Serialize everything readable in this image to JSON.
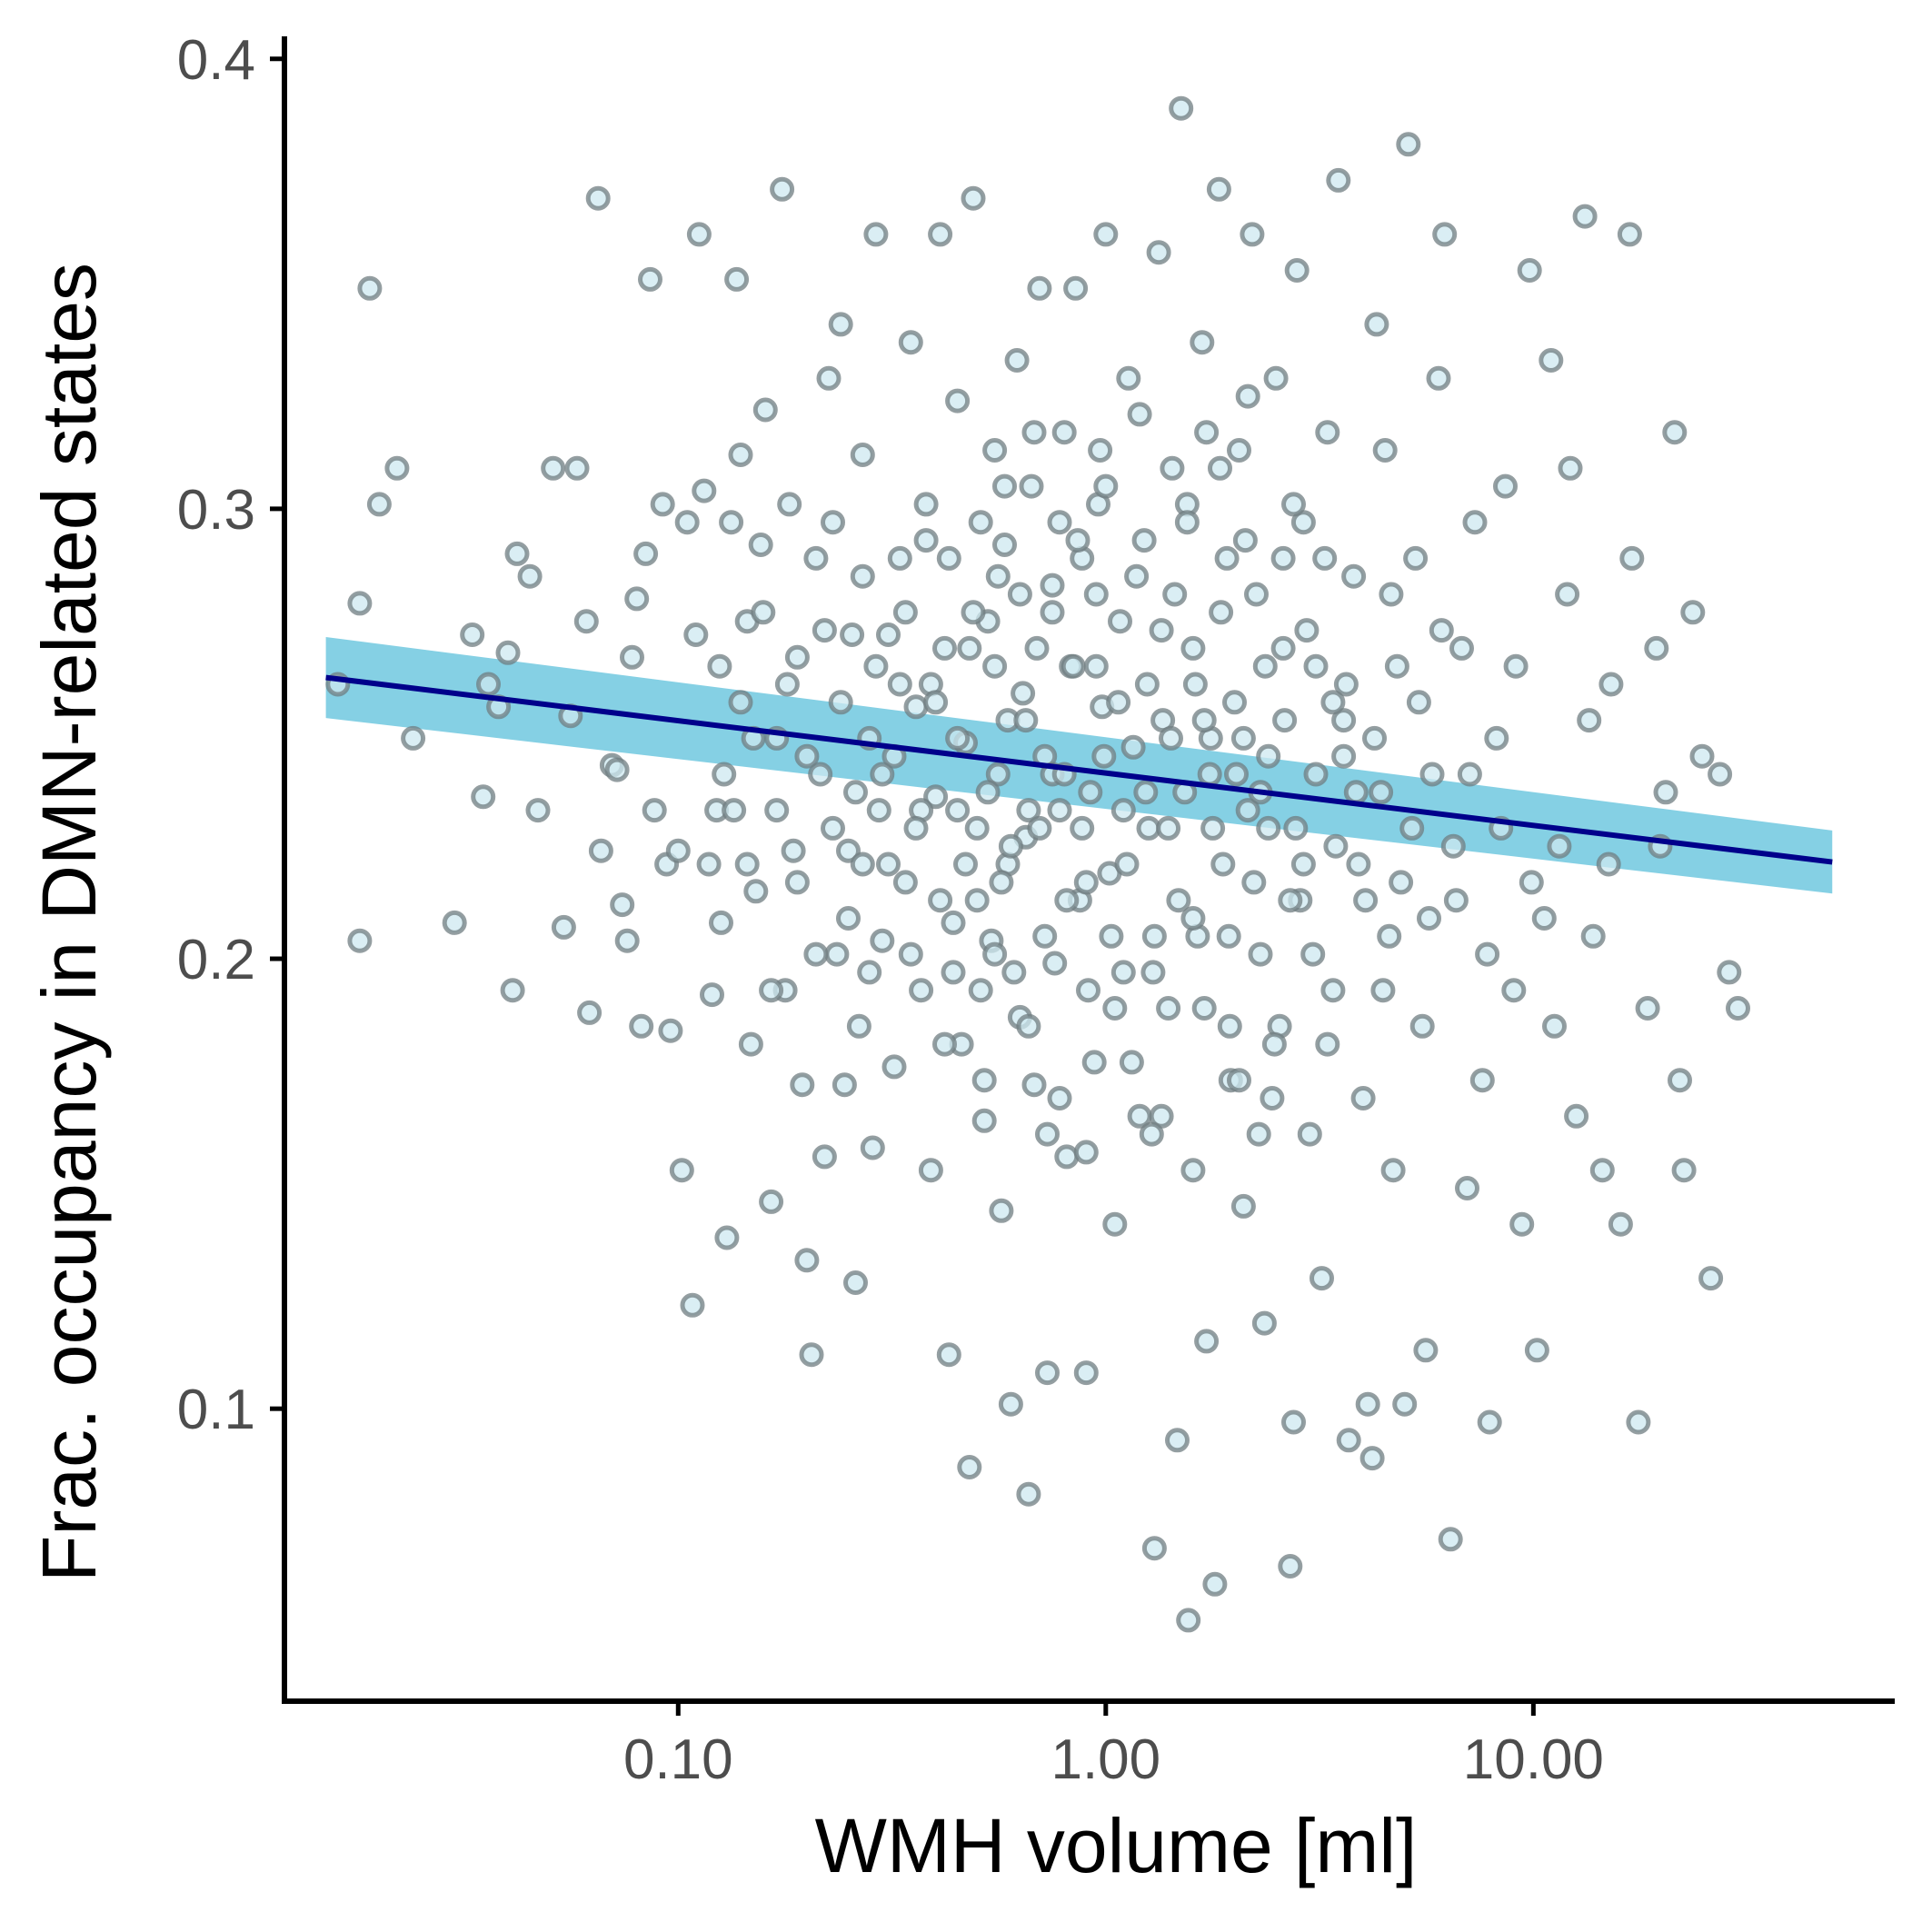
{
  "chart_data": {
    "type": "scatter",
    "xlabel": "WMH volume [ml]",
    "ylabel": "Frac. occupancy in DMN-related states",
    "x_scale": "log10",
    "x_ticks": [
      0.1,
      1,
      10
    ],
    "x_tick_labels": [
      "0.10",
      "1.00",
      "10.00"
    ],
    "y_ticks": [
      0.1,
      0.2,
      0.3,
      0.4
    ],
    "y_tick_labels": [
      "0.1",
      "0.2",
      "0.3",
      "0.4"
    ],
    "xlim": [
      0.012,
      70
    ],
    "ylim": [
      0.035,
      0.405
    ],
    "grid": false,
    "legend": "none",
    "colors": {
      "point_fill": "#cde8f0",
      "point_stroke": "#707d82",
      "fit_line": "#00008b",
      "confidence_band": "#7ecde3",
      "axis": "#000000"
    },
    "fit": {
      "x": [
        0.015,
        50
      ],
      "y": [
        0.2625,
        0.2215
      ],
      "ci_lower": [
        0.2535,
        0.2145
      ],
      "ci_upper": [
        0.2715,
        0.2285
      ]
    },
    "points": [
      [
        0.016,
        0.261
      ],
      [
        0.018,
        0.204
      ],
      [
        0.019,
        0.349
      ],
      [
        0.02,
        0.301
      ],
      [
        0.022,
        0.309
      ],
      [
        0.024,
        0.249
      ],
      [
        0.018,
        0.279
      ],
      [
        0.03,
        0.208
      ],
      [
        0.033,
        0.272
      ],
      [
        0.035,
        0.236
      ],
      [
        0.036,
        0.261
      ],
      [
        0.038,
        0.256
      ],
      [
        0.04,
        0.268
      ],
      [
        0.041,
        0.193
      ],
      [
        0.042,
        0.29
      ],
      [
        0.045,
        0.285
      ],
      [
        0.047,
        0.233
      ],
      [
        0.051,
        0.309
      ],
      [
        0.054,
        0.207
      ],
      [
        0.056,
        0.254
      ],
      [
        0.058,
        0.309
      ],
      [
        0.061,
        0.275
      ],
      [
        0.062,
        0.188
      ],
      [
        0.065,
        0.369
      ],
      [
        0.066,
        0.224
      ],
      [
        0.07,
        0.243
      ],
      [
        0.072,
        0.242
      ],
      [
        0.074,
        0.212
      ],
      [
        0.076,
        0.204
      ],
      [
        0.078,
        0.267
      ],
      [
        0.08,
        0.28
      ],
      [
        0.082,
        0.185
      ],
      [
        0.084,
        0.29
      ],
      [
        0.086,
        0.351
      ],
      [
        0.088,
        0.233
      ],
      [
        0.092,
        0.301
      ],
      [
        0.094,
        0.221
      ],
      [
        0.096,
        0.184
      ],
      [
        0.1,
        0.224
      ],
      [
        0.102,
        0.153
      ],
      [
        0.105,
        0.297
      ],
      [
        0.108,
        0.123
      ],
      [
        0.11,
        0.272
      ],
      [
        0.112,
        0.361
      ],
      [
        0.115,
        0.304
      ],
      [
        0.118,
        0.221
      ],
      [
        0.12,
        0.192
      ],
      [
        0.123,
        0.233
      ],
      [
        0.126,
        0.208
      ],
      [
        0.13,
        0.138
      ],
      [
        0.133,
        0.297
      ],
      [
        0.137,
        0.351
      ],
      [
        0.14,
        0.312
      ],
      [
        0.145,
        0.275
      ],
      [
        0.148,
        0.181
      ],
      [
        0.152,
        0.215
      ],
      [
        0.156,
        0.292
      ],
      [
        0.16,
        0.322
      ],
      [
        0.165,
        0.146
      ],
      [
        0.17,
        0.249
      ],
      [
        0.175,
        0.371
      ],
      [
        0.178,
        0.193
      ],
      [
        0.182,
        0.301
      ],
      [
        0.186,
        0.224
      ],
      [
        0.19,
        0.267
      ],
      [
        0.195,
        0.172
      ],
      [
        0.2,
        0.133
      ],
      [
        0.205,
        0.112
      ],
      [
        0.21,
        0.289
      ],
      [
        0.215,
        0.241
      ],
      [
        0.22,
        0.156
      ],
      [
        0.225,
        0.329
      ],
      [
        0.23,
        0.297
      ],
      [
        0.235,
        0.201
      ],
      [
        0.24,
        0.341
      ],
      [
        0.245,
        0.172
      ],
      [
        0.25,
        0.224
      ],
      [
        0.255,
        0.272
      ],
      [
        0.26,
        0.128
      ],
      [
        0.265,
        0.185
      ],
      [
        0.27,
        0.312
      ],
      [
        0.28,
        0.249
      ],
      [
        0.285,
        0.158
      ],
      [
        0.29,
        0.361
      ],
      [
        0.295,
        0.233
      ],
      [
        0.3,
        0.204
      ],
      [
        0.31,
        0.272
      ],
      [
        0.32,
        0.176
      ],
      [
        0.33,
        0.289
      ],
      [
        0.34,
        0.217
      ],
      [
        0.35,
        0.337
      ],
      [
        0.36,
        0.256
      ],
      [
        0.37,
        0.193
      ],
      [
        0.38,
        0.301
      ],
      [
        0.39,
        0.153
      ],
      [
        0.4,
        0.236
      ],
      [
        0.41,
        0.361
      ],
      [
        0.42,
        0.269
      ],
      [
        0.43,
        0.112
      ],
      [
        0.44,
        0.208
      ],
      [
        0.45,
        0.324
      ],
      [
        0.46,
        0.181
      ],
      [
        0.47,
        0.248
      ],
      [
        0.48,
        0.087
      ],
      [
        0.49,
        0.369
      ],
      [
        0.5,
        0.229
      ],
      [
        0.51,
        0.297
      ],
      [
        0.52,
        0.164
      ],
      [
        0.53,
        0.275
      ],
      [
        0.54,
        0.204
      ],
      [
        0.55,
        0.313
      ],
      [
        0.56,
        0.241
      ],
      [
        0.57,
        0.144
      ],
      [
        0.58,
        0.292
      ],
      [
        0.59,
        0.221
      ],
      [
        0.6,
        0.101
      ],
      [
        0.62,
        0.333
      ],
      [
        0.63,
        0.187
      ],
      [
        0.64,
        0.259
      ],
      [
        0.65,
        0.227
      ],
      [
        0.66,
        0.081
      ],
      [
        0.67,
        0.305
      ],
      [
        0.68,
        0.172
      ],
      [
        0.7,
        0.349
      ],
      [
        0.72,
        0.245
      ],
      [
        0.73,
        0.108
      ],
      [
        0.75,
        0.283
      ],
      [
        0.76,
        0.199
      ],
      [
        0.78,
        0.233
      ],
      [
        0.8,
        0.317
      ],
      [
        0.81,
        0.156
      ],
      [
        0.83,
        0.265
      ],
      [
        0.85,
        0.349
      ],
      [
        0.87,
        0.213
      ],
      [
        0.88,
        0.289
      ],
      [
        0.9,
        0.108
      ],
      [
        0.92,
        0.237
      ],
      [
        0.94,
        0.177
      ],
      [
        0.96,
        0.301
      ],
      [
        0.98,
        0.256
      ],
      [
        1.0,
        0.361
      ],
      [
        1.02,
        0.219
      ],
      [
        1.05,
        0.141
      ],
      [
        1.08,
        0.275
      ],
      [
        1.1,
        0.197
      ],
      [
        1.13,
        0.329
      ],
      [
        1.16,
        0.247
      ],
      [
        1.2,
        0.165
      ],
      [
        1.23,
        0.293
      ],
      [
        1.26,
        0.229
      ],
      [
        1.3,
        0.069
      ],
      [
        1.33,
        0.357
      ],
      [
        1.36,
        0.253
      ],
      [
        1.4,
        0.189
      ],
      [
        1.43,
        0.309
      ],
      [
        1.47,
        0.093
      ],
      [
        1.5,
        0.389
      ],
      [
        1.53,
        0.237
      ],
      [
        1.56,
        0.053
      ],
      [
        1.6,
        0.269
      ],
      [
        1.64,
        0.205
      ],
      [
        1.68,
        0.337
      ],
      [
        1.72,
        0.115
      ],
      [
        1.76,
        0.249
      ],
      [
        1.8,
        0.061
      ],
      [
        1.84,
        0.371
      ],
      [
        1.88,
        0.221
      ],
      [
        1.92,
        0.289
      ],
      [
        1.96,
        0.173
      ],
      [
        2.0,
        0.257
      ],
      [
        2.05,
        0.313
      ],
      [
        2.1,
        0.145
      ],
      [
        2.15,
        0.233
      ],
      [
        2.2,
        0.361
      ],
      [
        2.25,
        0.281
      ],
      [
        2.3,
        0.201
      ],
      [
        2.35,
        0.119
      ],
      [
        2.4,
        0.245
      ],
      [
        2.5,
        0.329
      ],
      [
        2.55,
        0.185
      ],
      [
        2.6,
        0.269
      ],
      [
        2.7,
        0.065
      ],
      [
        2.75,
        0.097
      ],
      [
        2.8,
        0.353
      ],
      [
        2.85,
        0.213
      ],
      [
        2.9,
        0.297
      ],
      [
        3.0,
        0.161
      ],
      [
        3.1,
        0.241
      ],
      [
        3.2,
        0.129
      ],
      [
        3.3,
        0.317
      ],
      [
        3.4,
        0.193
      ],
      [
        3.5,
        0.373
      ],
      [
        3.6,
        0.253
      ],
      [
        3.7,
        0.093
      ],
      [
        3.8,
        0.285
      ],
      [
        3.9,
        0.221
      ],
      [
        4.0,
        0.169
      ],
      [
        4.1,
        0.101
      ],
      [
        4.2,
        0.089
      ],
      [
        4.3,
        0.341
      ],
      [
        4.4,
        0.237
      ],
      [
        4.5,
        0.313
      ],
      [
        4.6,
        0.205
      ],
      [
        4.7,
        0.153
      ],
      [
        4.8,
        0.265
      ],
      [
        5.0,
        0.101
      ],
      [
        5.1,
        0.381
      ],
      [
        5.3,
        0.289
      ],
      [
        5.5,
        0.185
      ],
      [
        5.6,
        0.113
      ],
      [
        5.8,
        0.241
      ],
      [
        6.0,
        0.329
      ],
      [
        6.2,
        0.361
      ],
      [
        6.4,
        0.071
      ],
      [
        6.6,
        0.213
      ],
      [
        6.8,
        0.269
      ],
      [
        7.0,
        0.149
      ],
      [
        7.3,
        0.297
      ],
      [
        7.6,
        0.173
      ],
      [
        7.9,
        0.097
      ],
      [
        8.2,
        0.249
      ],
      [
        8.6,
        0.305
      ],
      [
        9.0,
        0.193
      ],
      [
        9.4,
        0.141
      ],
      [
        9.8,
        0.353
      ],
      [
        10.2,
        0.113
      ],
      [
        10.6,
        0.209
      ],
      [
        11.0,
        0.333
      ],
      [
        11.5,
        0.225
      ],
      [
        12.0,
        0.281
      ],
      [
        12.6,
        0.165
      ],
      [
        13.2,
        0.365
      ],
      [
        13.8,
        0.205
      ],
      [
        14.5,
        0.153
      ],
      [
        15.2,
        0.261
      ],
      [
        16.0,
        0.141
      ],
      [
        16.8,
        0.361
      ],
      [
        17.6,
        0.097
      ],
      [
        18.5,
        0.189
      ],
      [
        19.4,
        0.269
      ],
      [
        20.4,
        0.237
      ],
      [
        21.4,
        0.317
      ],
      [
        22.5,
        0.153
      ],
      [
        23.6,
        0.277
      ],
      [
        24.8,
        0.245
      ],
      [
        26.0,
        0.129
      ],
      [
        27.3,
        0.241
      ],
      [
        28.7,
        0.197
      ],
      [
        30.1,
        0.189
      ],
      [
        22.0,
        0.173
      ],
      [
        19.8,
        0.225
      ],
      [
        17.0,
        0.289
      ],
      [
        15.0,
        0.221
      ],
      [
        13.5,
        0.253
      ],
      [
        12.2,
        0.309
      ],
      [
        11.2,
        0.185
      ],
      [
        9.9,
        0.217
      ],
      [
        9.1,
        0.265
      ],
      [
        8.4,
        0.229
      ],
      [
        7.8,
        0.201
      ],
      [
        7.1,
        0.241
      ],
      [
        6.5,
        0.225
      ],
      [
        6.1,
        0.273
      ],
      [
        5.7,
        0.209
      ],
      [
        5.4,
        0.257
      ],
      [
        5.2,
        0.229
      ],
      [
        4.9,
        0.217
      ],
      [
        4.65,
        0.281
      ],
      [
        4.45,
        0.193
      ],
      [
        4.25,
        0.249
      ],
      [
        4.05,
        0.213
      ],
      [
        3.85,
        0.237
      ],
      [
        3.65,
        0.261
      ],
      [
        3.45,
        0.225
      ],
      [
        3.25,
        0.289
      ],
      [
        3.05,
        0.201
      ],
      [
        2.95,
        0.273
      ],
      [
        2.78,
        0.229
      ],
      [
        2.62,
        0.253
      ],
      [
        2.48,
        0.181
      ],
      [
        2.36,
        0.265
      ],
      [
        2.22,
        0.217
      ],
      [
        2.12,
        0.293
      ],
      [
        2.02,
        0.241
      ],
      [
        1.94,
        0.205
      ],
      [
        1.86,
        0.277
      ],
      [
        1.78,
        0.229
      ],
      [
        1.7,
        0.189
      ],
      [
        1.62,
        0.261
      ],
      [
        1.55,
        0.301
      ],
      [
        1.48,
        0.213
      ],
      [
        1.42,
        0.249
      ],
      [
        1.35,
        0.273
      ],
      [
        1.29,
        0.197
      ],
      [
        1.24,
        0.237
      ],
      [
        1.18,
        0.285
      ],
      [
        1.12,
        0.221
      ],
      [
        1.07,
        0.257
      ],
      [
        1.03,
        0.205
      ],
      [
        0.99,
        0.245
      ],
      [
        0.95,
        0.281
      ],
      [
        0.91,
        0.193
      ],
      [
        0.88,
        0.229
      ],
      [
        0.84,
        0.265
      ],
      [
        0.81,
        0.213
      ],
      [
        0.78,
        0.297
      ],
      [
        0.75,
        0.241
      ],
      [
        0.72,
        0.205
      ],
      [
        0.69,
        0.269
      ],
      [
        0.66,
        0.233
      ],
      [
        0.63,
        0.281
      ],
      [
        0.61,
        0.197
      ],
      [
        0.59,
        0.253
      ],
      [
        0.57,
        0.217
      ],
      [
        0.55,
        0.265
      ],
      [
        0.53,
        0.237
      ],
      [
        0.51,
        0.193
      ],
      [
        0.49,
        0.277
      ],
      [
        0.47,
        0.221
      ],
      [
        0.45,
        0.249
      ],
      [
        0.43,
        0.289
      ],
      [
        0.41,
        0.213
      ],
      [
        0.39,
        0.261
      ],
      [
        0.37,
        0.233
      ],
      [
        0.35,
        0.201
      ],
      [
        0.34,
        0.277
      ],
      [
        0.32,
        0.245
      ],
      [
        0.31,
        0.221
      ],
      [
        0.29,
        0.265
      ],
      [
        0.28,
        0.197
      ],
      [
        0.27,
        0.285
      ],
      [
        0.26,
        0.237
      ],
      [
        0.25,
        0.209
      ],
      [
        0.24,
        0.257
      ],
      [
        0.23,
        0.229
      ],
      [
        0.22,
        0.273
      ],
      [
        0.21,
        0.201
      ],
      [
        0.2,
        0.245
      ],
      [
        0.19,
        0.217
      ],
      [
        0.18,
        0.261
      ],
      [
        0.17,
        0.233
      ],
      [
        0.165,
        0.193
      ],
      [
        0.158,
        0.277
      ],
      [
        0.15,
        0.249
      ],
      [
        0.145,
        0.221
      ],
      [
        0.14,
        0.257
      ],
      [
        0.135,
        0.233
      ],
      [
        0.128,
        0.241
      ],
      [
        0.125,
        0.265
      ],
      [
        0.6,
        0.225
      ],
      [
        0.8,
        0.241
      ],
      [
        1.1,
        0.233
      ],
      [
        1.4,
        0.229
      ],
      [
        1.7,
        0.253
      ],
      [
        2.3,
        0.237
      ],
      [
        2.9,
        0.221
      ],
      [
        3.6,
        0.245
      ],
      [
        0.45,
        0.233
      ],
      [
        0.65,
        0.253
      ],
      [
        0.9,
        0.217
      ],
      [
        1.25,
        0.261
      ],
      [
        1.6,
        0.209
      ],
      [
        2.1,
        0.249
      ],
      [
        2.7,
        0.213
      ],
      [
        3.4,
        0.257
      ],
      [
        0.5,
        0.213
      ],
      [
        0.7,
        0.229
      ],
      [
        0.95,
        0.265
      ],
      [
        1.3,
        0.205
      ],
      [
        1.75,
        0.241
      ],
      [
        2.4,
        0.229
      ],
      [
        3.1,
        0.265
      ],
      [
        0.4,
        0.257
      ],
      [
        0.55,
        0.201
      ],
      [
        0.75,
        0.277
      ],
      [
        1.05,
        0.189
      ],
      [
        1.45,
        0.281
      ],
      [
        1.95,
        0.185
      ],
      [
        2.6,
        0.289
      ],
      [
        3.3,
        0.181
      ],
      [
        0.36,
        0.229
      ],
      [
        0.48,
        0.269
      ],
      [
        0.66,
        0.185
      ],
      [
        0.86,
        0.293
      ],
      [
        1.15,
        0.177
      ],
      [
        1.55,
        0.297
      ],
      [
        2.05,
        0.173
      ],
      [
        2.75,
        0.301
      ],
      [
        0.33,
        0.261
      ],
      [
        0.44,
        0.197
      ],
      [
        0.58,
        0.305
      ],
      [
        0.78,
        0.169
      ],
      [
        1.0,
        0.305
      ],
      [
        1.35,
        0.165
      ],
      [
        1.85,
        0.309
      ],
      [
        2.45,
        0.169
      ],
      [
        0.3,
        0.241
      ],
      [
        0.42,
        0.181
      ],
      [
        0.56,
        0.285
      ],
      [
        0.73,
        0.161
      ],
      [
        0.97,
        0.313
      ],
      [
        1.28,
        0.161
      ],
      [
        1.72,
        0.317
      ],
      [
        2.28,
        0.161
      ],
      [
        0.27,
        0.221
      ],
      [
        0.38,
        0.293
      ],
      [
        0.52,
        0.173
      ],
      [
        0.68,
        0.317
      ],
      [
        0.9,
        0.157
      ],
      [
        1.2,
        0.321
      ],
      [
        1.6,
        0.153
      ],
      [
        2.15,
        0.325
      ]
    ]
  }
}
